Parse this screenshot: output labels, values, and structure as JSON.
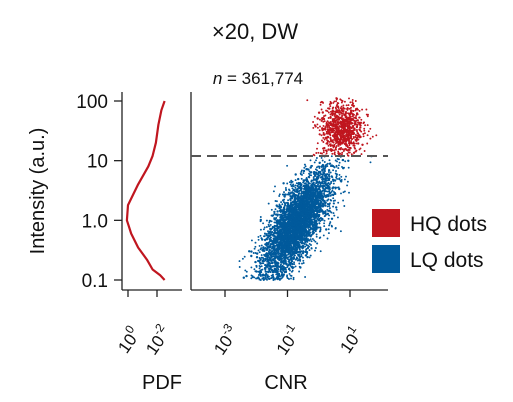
{
  "chart_data": {
    "title": "×20, DW",
    "annotation": "n = 361,774",
    "annotation_var": "n",
    "annotation_value": " = 361,774",
    "threshold": 12,
    "colors": {
      "hq": "#c0161f",
      "lq": "#005a9c",
      "pdf_line": "#c0161f",
      "threshold": "#555555"
    },
    "legend": [
      {
        "label": "HQ dots",
        "color": "#c0161f"
      },
      {
        "label": "LQ dots",
        "color": "#005a9c"
      }
    ],
    "y_axis": {
      "label": "Intensity (a.u.)",
      "scale": "log",
      "range": [
        0.08,
        140
      ],
      "ticks": [
        0.1,
        1,
        10,
        100
      ],
      "tick_labels": [
        "0.1",
        "1.0",
        "10",
        "100"
      ]
    },
    "pdf_panel": {
      "type": "line",
      "xlabel": "PDF",
      "x_scale": "log",
      "x_ticks": [
        {
          "base": "10",
          "exp": "0"
        },
        {
          "base": "10",
          "exp": "-2"
        }
      ],
      "curve": [
        {
          "x": 0.003,
          "y": 100
        },
        {
          "x": 0.005,
          "y": 70
        },
        {
          "x": 0.008,
          "y": 40
        },
        {
          "x": 0.012,
          "y": 20
        },
        {
          "x": 0.02,
          "y": 12
        },
        {
          "x": 0.04,
          "y": 8
        },
        {
          "x": 0.2,
          "y": 4
        },
        {
          "x": 1.0,
          "y": 1.8
        },
        {
          "x": 1.2,
          "y": 1.0
        },
        {
          "x": 0.6,
          "y": 0.6
        },
        {
          "x": 0.2,
          "y": 0.35
        },
        {
          "x": 0.05,
          "y": 0.22
        },
        {
          "x": 0.02,
          "y": 0.15
        },
        {
          "x": 0.006,
          "y": 0.12
        },
        {
          "x": 0.003,
          "y": 0.1
        }
      ]
    },
    "scatter_panel": {
      "type": "scatter",
      "xlabel": "CNR",
      "x_scale": "log",
      "x_range": [
        3e-05,
        300
      ],
      "x_ticks": [
        {
          "value": 0.001,
          "base": "10",
          "exp": "-3"
        },
        {
          "value": 0.1,
          "base": "10",
          "exp": "-1"
        },
        {
          "value": 10,
          "base": "10",
          "exp": "1"
        }
      ],
      "series": [
        {
          "name": "HQ dots",
          "color": "#c0161f",
          "points": [
            {
              "x": 10,
              "y": 40
            },
            {
              "x": 5,
              "y": 25
            },
            {
              "x": 20,
              "y": 60
            },
            {
              "x": 8,
              "y": 80
            },
            {
              "x": 3,
              "y": 15
            },
            {
              "x": 15,
              "y": 30
            },
            {
              "x": 30,
              "y": 90
            },
            {
              "x": 6,
              "y": 50
            },
            {
              "x": 12,
              "y": 20
            },
            {
              "x": 2,
              "y": 14
            }
          ]
        },
        {
          "name": "LQ dots",
          "color": "#005a9c",
          "points": [
            {
              "x": 0.3,
              "y": 1.0
            },
            {
              "x": 1,
              "y": 3
            },
            {
              "x": 0.1,
              "y": 0.7
            },
            {
              "x": 0.05,
              "y": 2
            },
            {
              "x": 2,
              "y": 6
            },
            {
              "x": 0.5,
              "y": 0.4
            },
            {
              "x": 0.01,
              "y": 3
            },
            {
              "x": 0.2,
              "y": 0.25
            },
            {
              "x": 4,
              "y": 10
            },
            {
              "x": 0.02,
              "y": 1.5
            }
          ]
        }
      ]
    }
  }
}
